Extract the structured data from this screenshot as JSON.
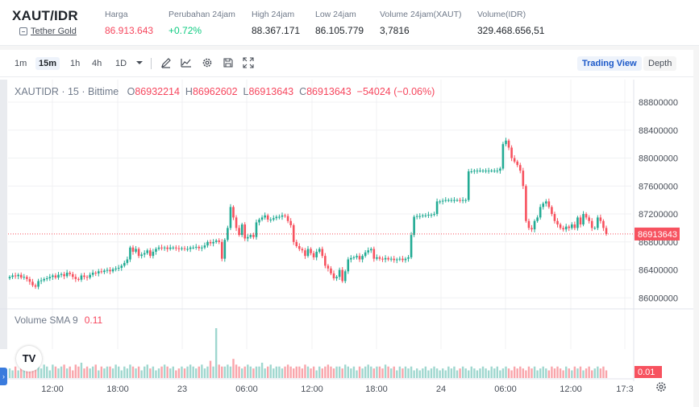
{
  "header": {
    "pair": "XAUT/IDR",
    "pair_name": "Tether Gold",
    "stats": [
      {
        "label": "Harga",
        "value": "86.913.643",
        "tone": "red"
      },
      {
        "label": "Perubahan 24jam",
        "value": "+0.72%",
        "tone": "green"
      },
      {
        "label": "High 24jam",
        "value": "88.367.171",
        "tone": "plain"
      },
      {
        "label": "Low 24jam",
        "value": "86.105.779",
        "tone": "plain"
      },
      {
        "label": "Volume 24jam(XAUT)",
        "value": "3,7816",
        "tone": "plain"
      },
      {
        "label": "Volume(IDR)",
        "value": "329.468.656,51",
        "tone": "plain"
      }
    ]
  },
  "toolbar": {
    "timeframes": [
      "1m",
      "15m",
      "1h",
      "4h",
      "1D"
    ],
    "active_timeframe": "15m",
    "icons": [
      "chevron-down-icon",
      "pencil-icon",
      "line-chart-icon",
      "gear-icon",
      "save-icon",
      "fullscreen-icon"
    ],
    "views": [
      "Trading View",
      "Depth"
    ],
    "active_view": "Trading View"
  },
  "legend": {
    "symbol": "XAUTIDR · 15 · Bittime",
    "o_key": "O",
    "o": "86932214",
    "h_key": "H",
    "h": "86962602",
    "l_key": "L",
    "l": "86913643",
    "c_key": "C",
    "c": "86913643",
    "change": "−54024 (−0.06%)"
  },
  "volume_legend": {
    "label": "Volume SMA 9",
    "value": "0.11"
  },
  "chart_data": {
    "type": "candlestick",
    "y_ticks": [
      "88800000",
      "88400000",
      "88000000",
      "87600000",
      "87200000",
      "86800000",
      "86400000",
      "86000000"
    ],
    "ylim": [
      85900000,
      88950000
    ],
    "x_ticks": [
      "12:00",
      "18:00",
      "23",
      "06:00",
      "12:00",
      "18:00",
      "24",
      "06:00",
      "12:00",
      "17:3"
    ],
    "last_price": 86913643,
    "last_price_label": "86913643",
    "volume_last_label": "0.01",
    "colors": {
      "up": "#22ab94",
      "down": "#f7525f",
      "vol_up": "#9fd7cf",
      "vol_down": "#f9a5ab",
      "price_line": "#f7525f"
    },
    "series": [
      {
        "name": "price",
        "values": [
          86300000,
          86320000,
          86310000,
          86330000,
          86290000,
          86300000,
          86270000,
          86230000,
          86180000,
          86160000,
          86240000,
          86250000,
          86270000,
          86280000,
          86300000,
          86320000,
          86290000,
          86330000,
          86340000,
          86310000,
          86360000,
          86340000,
          86300000,
          86270000,
          86260000,
          86320000,
          86300000,
          86290000,
          86330000,
          86360000,
          86350000,
          86380000,
          86370000,
          86390000,
          86400000,
          86380000,
          86410000,
          86420000,
          86430000,
          86460000,
          86500000,
          86550000,
          86720000,
          86660000,
          86700000,
          86600000,
          86620000,
          86640000,
          86680000,
          86600000,
          86660000,
          86700000,
          86720000,
          86710000,
          86720000,
          86700000,
          86720000,
          86720000,
          86710000,
          86700000,
          86710000,
          86700000,
          86700000,
          86720000,
          86720000,
          86730000,
          86710000,
          86720000,
          86750000,
          86800000,
          86780000,
          86800000,
          86820000,
          86800000,
          86560000,
          86830000,
          87000000,
          87300000,
          87150000,
          87000000,
          86900000,
          87050000,
          86850000,
          86870000,
          86900000,
          86870000,
          87080000,
          87120000,
          87150000,
          87180000,
          87120000,
          87120000,
          87140000,
          87160000,
          87160000,
          87180000,
          87170000,
          87100000,
          87040000,
          86800000,
          86740000,
          86700000,
          86680000,
          86600000,
          86700000,
          86640000,
          86580000,
          86660000,
          86700000,
          86600000,
          86460000,
          86420000,
          86350000,
          86280000,
          86300000,
          86400000,
          86240000,
          86380000,
          86550000,
          86570000,
          86580000,
          86600000,
          86550000,
          86600000,
          86650000,
          86680000,
          86700000,
          86560000,
          86580000,
          86560000,
          86550000,
          86570000,
          86550000,
          86560000,
          86540000,
          86550000,
          86560000,
          86540000,
          86560000,
          86580000,
          86900000,
          87160000,
          87170000,
          87170000,
          87180000,
          87180000,
          87190000,
          87190000,
          87200000,
          87380000,
          87380000,
          87390000,
          87400000,
          87400000,
          87400000,
          87400000,
          87400000,
          87390000,
          87400000,
          87400000,
          87810000,
          87810000,
          87820000,
          87820000,
          87820000,
          87820000,
          87820000,
          87820000,
          87820000,
          87820000,
          87820000,
          87850000,
          88200000,
          88250000,
          88150000,
          88000000,
          87950000,
          87900000,
          87820000,
          87600000,
          87100000,
          87000000,
          86980000,
          87100000,
          87150000,
          87300000,
          87350000,
          87380000,
          87300000,
          87200000,
          87100000,
          87050000,
          87000000,
          86980000,
          87020000,
          87000000,
          87050000,
          87000000,
          87150000,
          87050000,
          87200000,
          87150000,
          87100000,
          87000000,
          87000000,
          87150000,
          87100000,
          87000000,
          86913643
        ]
      },
      {
        "name": "volume",
        "values": [
          0.25,
          0.2,
          0.3,
          0.2,
          0.35,
          0.25,
          0.3,
          0.4,
          0.3,
          0.45,
          0.3,
          0.25,
          0.35,
          0.3,
          0.2,
          0.35,
          0.3,
          0.25,
          0.3,
          0.35,
          0.25,
          0.3,
          0.2,
          0.35,
          0.3,
          0.4,
          0.25,
          0.3,
          0.25,
          0.3,
          0.35,
          0.2,
          0.3,
          0.25,
          0.3,
          0.3,
          0.25,
          0.35,
          0.3,
          0.2,
          0.3,
          0.25,
          0.35,
          0.3,
          0.25,
          0.3,
          0.2,
          0.3,
          0.35,
          0.25,
          0.3,
          0.2,
          0.25,
          0.3,
          0.35,
          0.3,
          0.25,
          0.3,
          0.2,
          0.25,
          0.3,
          0.25,
          0.3,
          0.35,
          0.3,
          0.25,
          0.3,
          0.35,
          0.25,
          0.3,
          0.45,
          0.3,
          1.3,
          0.35,
          0.3,
          0.3,
          0.35,
          0.3,
          0.5,
          0.35,
          0.3,
          0.25,
          0.3,
          0.35,
          0.3,
          0.25,
          0.3,
          0.3,
          0.4,
          0.25,
          0.3,
          0.35,
          0.25,
          0.3,
          0.3,
          0.25,
          0.3,
          0.35,
          0.3,
          0.25,
          0.3,
          0.3,
          0.25,
          0.35,
          0.3,
          0.25,
          0.3,
          0.2,
          0.3,
          0.25,
          0.3,
          0.35,
          0.3,
          0.25,
          0.3,
          0.3,
          0.25,
          0.35,
          0.3,
          0.25,
          0.3,
          0.2,
          0.3,
          0.25,
          0.3,
          0.35,
          0.3,
          0.25,
          0.3,
          0.3,
          0.25,
          0.35,
          0.3,
          0.25,
          0.3,
          0.2,
          0.3,
          0.25,
          0.3,
          0.25,
          0.3,
          0.2,
          0.25,
          0.2,
          0.25,
          0.3,
          0.2,
          0.25,
          0.3,
          0.25,
          0.2,
          0.25,
          0.2,
          0.3,
          0.25,
          0.3,
          0.2,
          0.25,
          0.3,
          0.25,
          0.2,
          0.3,
          0.25,
          0.2,
          0.25,
          0.3,
          0.25,
          0.2,
          0.3,
          0.25,
          0.3,
          0.2,
          0.25,
          0.3,
          0.25,
          0.2,
          0.3,
          0.25,
          0.3,
          0.25,
          0.2,
          0.3,
          0.25,
          0.3,
          0.2,
          0.25,
          0.3,
          0.25,
          0.2,
          0.3,
          0.25,
          0.3,
          0.25,
          0.2,
          0.3,
          0.25,
          0.2,
          0.3,
          0.25,
          0.3,
          0.2,
          0.25,
          0.3,
          0.2,
          0.25,
          0.3,
          0.25,
          0.3,
          0.2,
          0.25,
          0.2
        ]
      }
    ]
  }
}
